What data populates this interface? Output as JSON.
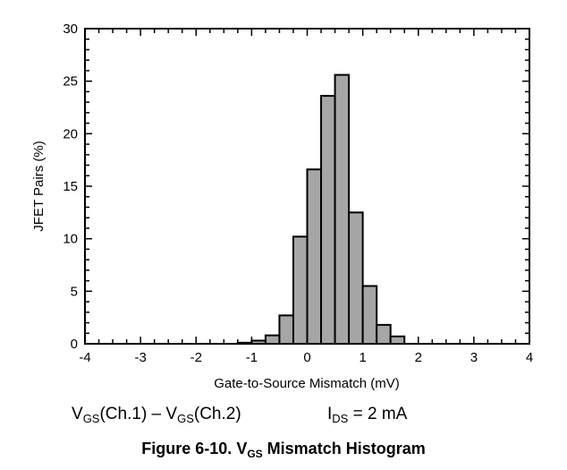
{
  "chart_data": {
    "type": "bar",
    "xlabel": "Gate-to-Source Mismatch (mV)",
    "ylabel": "JFET Pairs (%)",
    "xlim": [
      -4,
      4
    ],
    "ylim": [
      0,
      30
    ],
    "xticks": [
      -4,
      -3,
      -2,
      -1,
      0,
      1,
      2,
      3,
      4
    ],
    "yticks": [
      0,
      5,
      10,
      15,
      20,
      25,
      30
    ],
    "bin_width": 0.25,
    "bins": [
      {
        "left": -1.25,
        "value": 0.1
      },
      {
        "left": -1.0,
        "value": 0.3
      },
      {
        "left": -0.75,
        "value": 0.8
      },
      {
        "left": -0.5,
        "value": 2.7
      },
      {
        "left": -0.25,
        "value": 10.2
      },
      {
        "left": 0.0,
        "value": 16.6
      },
      {
        "left": 0.25,
        "value": 23.6
      },
      {
        "left": 0.5,
        "value": 25.6
      },
      {
        "left": 0.75,
        "value": 12.5
      },
      {
        "left": 1.0,
        "value": 5.5
      },
      {
        "left": 1.25,
        "value": 1.8
      },
      {
        "left": 1.5,
        "value": 0.7
      }
    ],
    "bar_color": "#a6a6a6",
    "grid": false
  },
  "caption": {
    "condition_left": {
      "a": "V",
      "a_sub": "GS",
      "b": "(Ch.1) – V",
      "b_sub": "GS",
      "c": "(Ch.2)"
    },
    "condition_right": {
      "a": "I",
      "a_sub": "DS",
      "b": " = 2 mA"
    },
    "figure_title": {
      "a": "Figure 6-10. V",
      "a_sub": "GS",
      "b": " Mismatch Histogram"
    }
  }
}
